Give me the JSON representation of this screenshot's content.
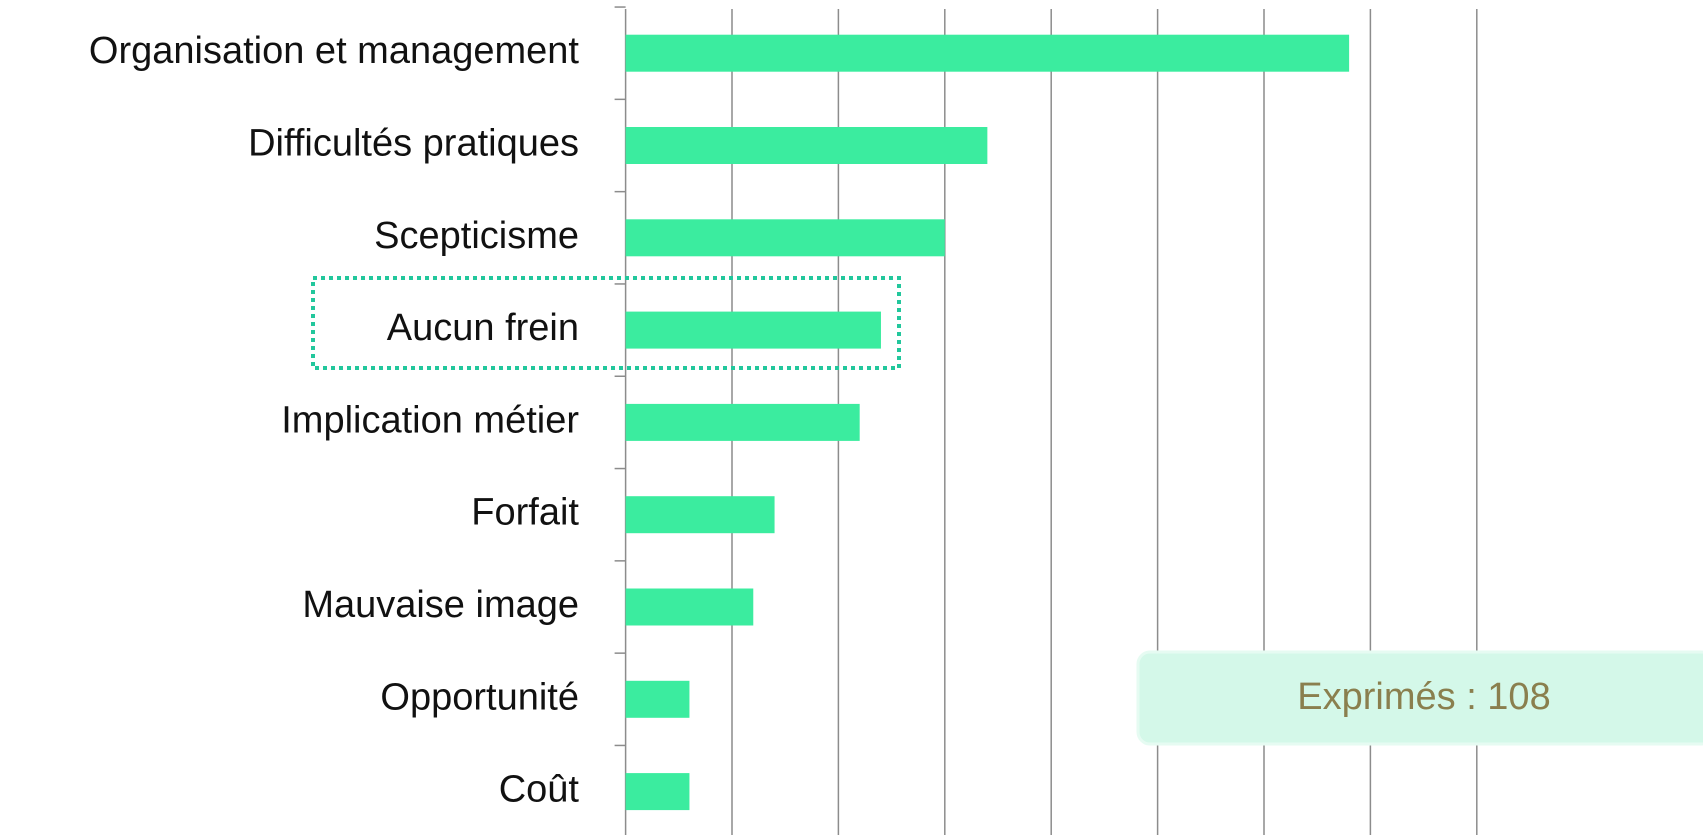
{
  "chart_data": {
    "type": "bar",
    "orientation": "horizontal",
    "categories": [
      "Organisation et management",
      "Difficultés pratiques",
      "Scepticisme",
      "Aucun frein",
      "Implication métier",
      "Forfait",
      "Mauvaise image",
      "Opportunité",
      "Coût"
    ],
    "values": [
      34,
      17,
      15,
      12,
      11,
      7,
      6,
      3,
      3
    ],
    "color": "#3bec9f",
    "xlim": [
      0,
      40
    ],
    "xticks": [
      0,
      5,
      10,
      15,
      20,
      25,
      30,
      35,
      40
    ],
    "grid": true,
    "annotation": "Exprimés : 108"
  }
}
